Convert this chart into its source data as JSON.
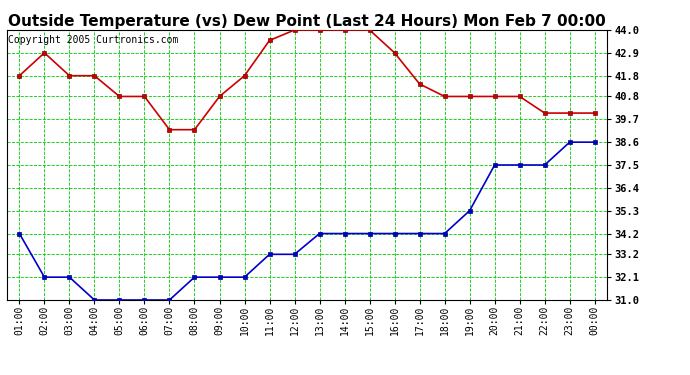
{
  "title": "Outside Temperature (vs) Dew Point (Last 24 Hours) Mon Feb 7 00:00",
  "copyright": "Copyright 2005 Curtronics.com",
  "x_labels": [
    "01:00",
    "02:00",
    "03:00",
    "04:00",
    "05:00",
    "06:00",
    "07:00",
    "08:00",
    "09:00",
    "10:00",
    "11:00",
    "12:00",
    "13:00",
    "14:00",
    "15:00",
    "16:00",
    "17:00",
    "18:00",
    "19:00",
    "20:00",
    "21:00",
    "22:00",
    "23:00",
    "00:00"
  ],
  "temp_data": [
    41.8,
    42.9,
    41.8,
    41.8,
    40.8,
    40.8,
    39.2,
    39.2,
    40.8,
    41.8,
    43.5,
    44.0,
    44.0,
    44.0,
    44.0,
    42.9,
    41.4,
    40.8,
    40.8,
    40.8,
    40.8,
    40.0,
    40.0,
    40.0
  ],
  "dew_data": [
    34.2,
    32.1,
    32.1,
    31.0,
    31.0,
    31.0,
    31.0,
    32.1,
    32.1,
    32.1,
    33.2,
    33.2,
    34.2,
    34.2,
    34.2,
    34.2,
    34.2,
    34.2,
    35.3,
    37.5,
    37.5,
    37.5,
    38.6,
    38.6
  ],
  "temp_color": "#cc0000",
  "dew_color": "#0000cc",
  "grid_color": "#00cc00",
  "background_color": "#ffffff",
  "ylim": [
    31.0,
    44.0
  ],
  "yticks": [
    31.0,
    32.1,
    33.2,
    34.2,
    35.3,
    36.4,
    37.5,
    38.6,
    39.7,
    40.8,
    41.8,
    42.9,
    44.0
  ],
  "title_fontsize": 11,
  "copyright_fontsize": 7,
  "markersize": 3,
  "linewidth": 1.2
}
